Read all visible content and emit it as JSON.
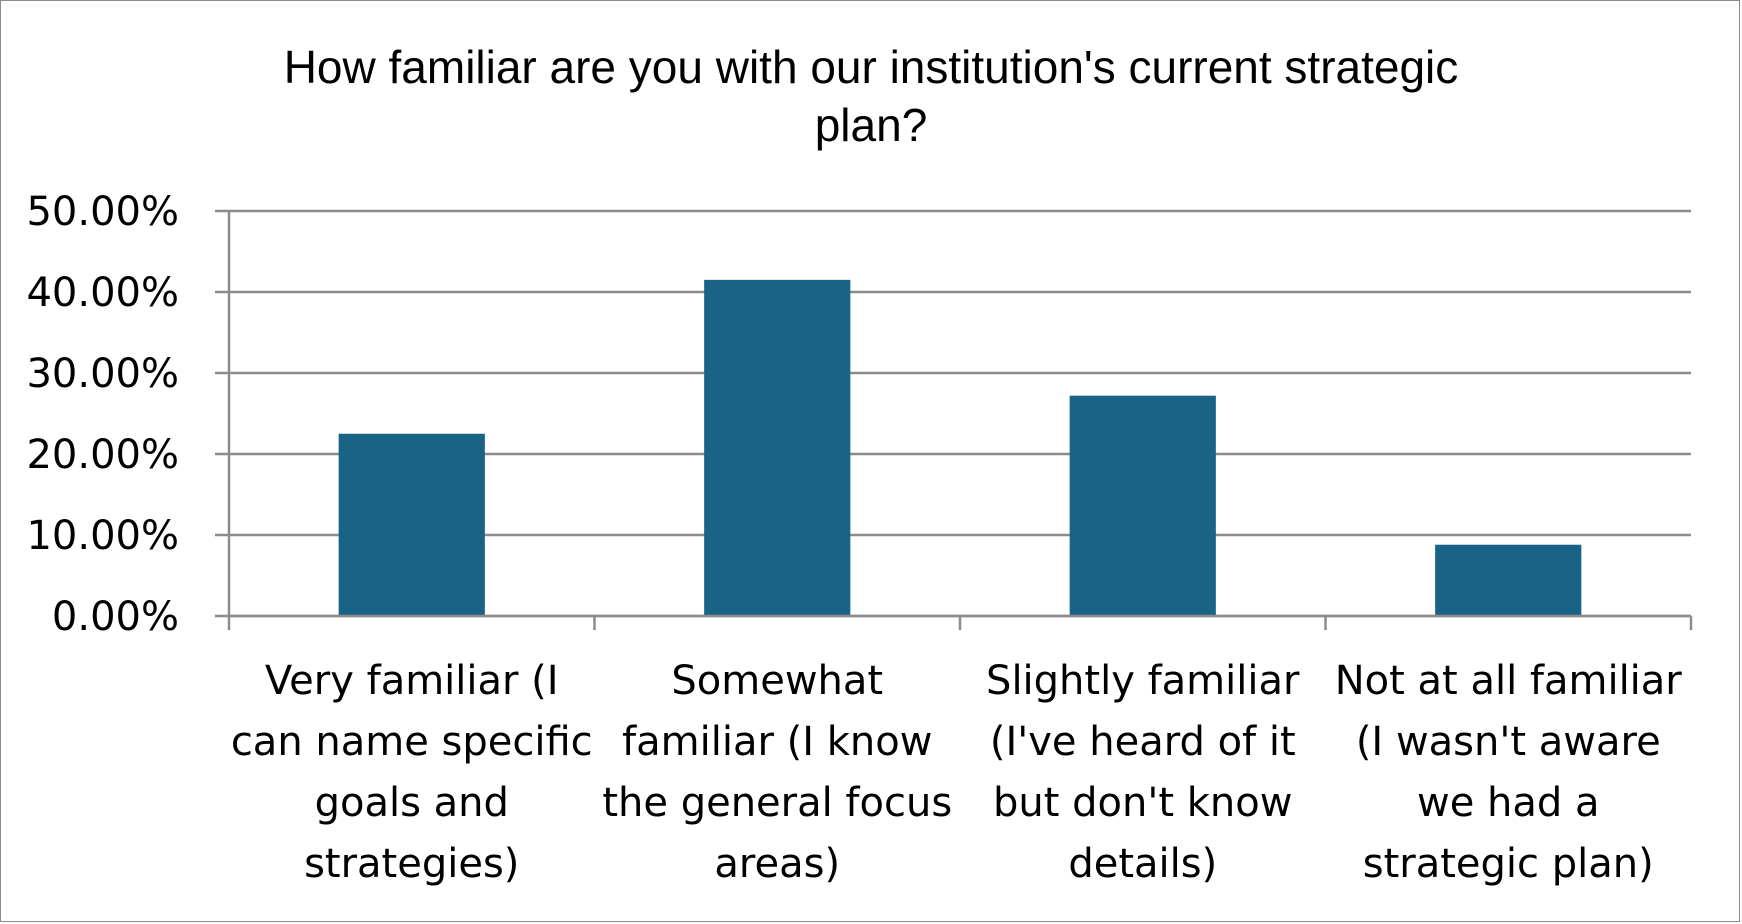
{
  "chart_data": {
    "type": "bar",
    "title_lines": [
      "How familiar are you with our institution's current strategic",
      "plan?"
    ],
    "categories": [
      "Very familiar (I can name specific goals and strategies)",
      "Somewhat familiar (I know the general focus areas)",
      "Slightly familiar (I've heard of it but don't know details)",
      "Not at all familiar (I wasn't aware we had a strategic plan)"
    ],
    "category_lines": [
      [
        "Very familiar (I",
        "can name specific",
        "goals and",
        "strategies)"
      ],
      [
        "Somewhat",
        "familiar (I know",
        "the general focus",
        "areas)"
      ],
      [
        "Slightly familiar",
        "(I've heard of it",
        "but don't know",
        "details)"
      ],
      [
        "Not at all familiar",
        "(I wasn't aware",
        "we had a",
        "strategic plan)"
      ]
    ],
    "values": [
      22.5,
      41.5,
      27.2,
      8.8
    ],
    "y_ticks": [
      "0.00%",
      "10.00%",
      "20.00%",
      "30.00%",
      "40.00%",
      "50.00%"
    ],
    "ylim": [
      0,
      50
    ],
    "y_step": 10,
    "grid": true,
    "legend": "none",
    "bar_color": "#186386",
    "grid_color": "#8c8c8c"
  }
}
